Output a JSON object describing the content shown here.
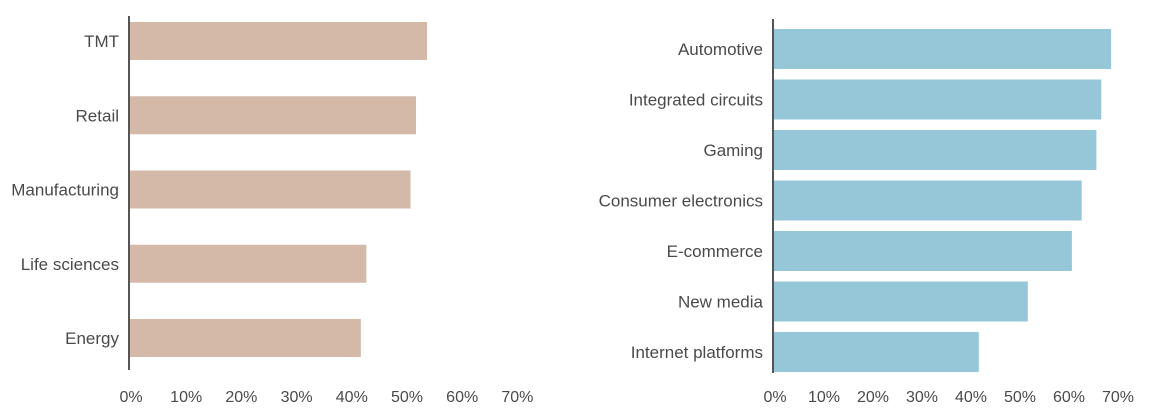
{
  "chart_data": [
    {
      "type": "bar",
      "orientation": "horizontal",
      "categories": [
        "TMT",
        "Retail",
        "Manufacturing",
        "Life sciences",
        "Energy"
      ],
      "values": [
        54,
        52,
        51,
        43,
        42
      ],
      "xlim": [
        0,
        70
      ],
      "ticks": [
        "0%",
        "10%",
        "20%",
        "30%",
        "40%",
        "50%",
        "60%",
        "70%"
      ],
      "color": "#d4b9a8",
      "grid": false,
      "legend": false
    },
    {
      "type": "bar",
      "orientation": "horizontal",
      "categories": [
        "Automotive",
        "Integrated circuits",
        "Gaming",
        "Consumer electronics",
        "E-commerce",
        "New media",
        "Internet platforms"
      ],
      "values": [
        69,
        67,
        66,
        63,
        61,
        52,
        42
      ],
      "xlim": [
        0,
        70
      ],
      "ticks": [
        "0%",
        "10%",
        "20%",
        "30%",
        "40%",
        "50%",
        "60%",
        "70%"
      ],
      "color": "#96c7d8",
      "grid": false,
      "legend": false
    }
  ]
}
